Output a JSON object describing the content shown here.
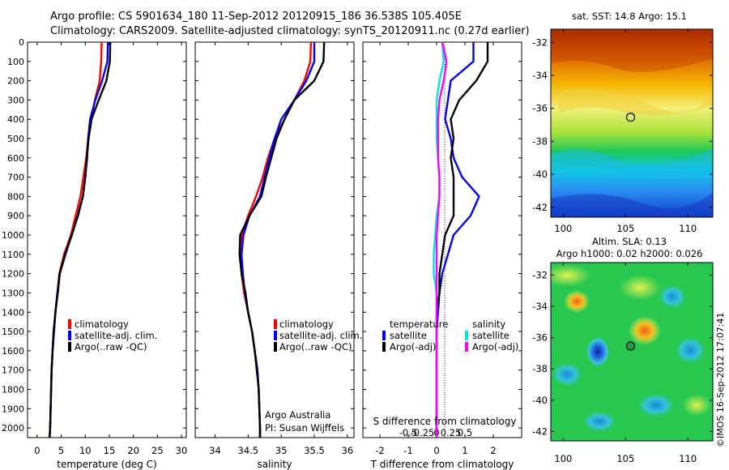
{
  "header": {
    "title_line1": "Argo profile: CS 5901634_180 11-Sep-2012 20120915_186 36.538S 105.405E",
    "title_line2": "Climatology: CARS2009. Satellite-adjusted climatology: synTS_20120911.nc (0.27d earlier)"
  },
  "colors": {
    "climatology": "#ff0000",
    "satellite": "#0000ff",
    "argo": "#000000",
    "sal_satellite": "#00e5e5",
    "sal_argo": "#ff00ff"
  },
  "panels": {
    "temperature": {
      "xlabel": "temperature (deg C)",
      "legend": [
        "climatology",
        "satellite-adj. clim.",
        "Argo(..raw -QC)"
      ]
    },
    "salinity": {
      "xlabel": "salinity",
      "legend": [
        "climatology",
        "satellite-adj. clim.",
        "Argo(..raw -QC)"
      ],
      "note_line1": "Argo Australia",
      "note_line2": "PI: Susan Wijffels"
    },
    "difference": {
      "xlabel": "T difference from climatology",
      "top_xlabel": "S difference from climatology",
      "legend_temperature_title": "temperature",
      "legend_salinity_title": "salinity",
      "legend_items": [
        "satellite",
        "Argo(-adj)",
        "satellite",
        "Argo(-adj)"
      ]
    }
  },
  "maps": {
    "sst_title": "sat. SST: 14.8 Argo: 15.1",
    "sla_title_line1": "Altim. SLA: 0.13",
    "sla_title_line2": "Argo h1000: 0.02 h2000: 0.026",
    "side_label": "©IMOS 16-Sep-2012 17:07:41",
    "yticks": [
      "-32",
      "-34",
      "-36",
      "-38",
      "-40",
      "-42"
    ],
    "xticks": [
      "100",
      "105",
      "110"
    ]
  },
  "chart_data": [
    {
      "type": "line",
      "name": "temperature profile",
      "xlabel": "temperature (deg C)",
      "ylabel": "",
      "xlim": [
        -2,
        31
      ],
      "ylim": [
        2050,
        0
      ],
      "xticks": [
        0,
        5,
        10,
        15,
        20,
        25,
        30
      ],
      "yticks": [
        0,
        100,
        200,
        300,
        400,
        500,
        600,
        700,
        800,
        900,
        1000,
        1100,
        1200,
        1300,
        1400,
        1500,
        1600,
        1700,
        1800,
        1900,
        2000
      ],
      "series": [
        {
          "name": "climatology",
          "color": "#ff0000",
          "x": [
            13.4,
            13.3,
            13.0,
            12.0,
            11.3,
            10.6,
            10.2,
            9.6,
            9.0,
            8.0,
            7.0,
            5.6,
            4.6,
            4.2,
            3.8,
            3.5,
            3.2,
            3.0,
            2.9,
            2.8,
            2.7,
            2.6
          ],
          "y": [
            0,
            100,
            200,
            300,
            400,
            500,
            600,
            700,
            800,
            900,
            1000,
            1100,
            1200,
            1300,
            1400,
            1500,
            1600,
            1700,
            1800,
            1900,
            2000,
            2050
          ]
        },
        {
          "name": "satellite-adj. clim.",
          "color": "#0000ff",
          "x": [
            14.7,
            14.6,
            13.5,
            12.1,
            11.0,
            10.6,
            10.4,
            10.0,
            9.5,
            8.5,
            7.2,
            5.9,
            4.7,
            4.2,
            3.8,
            3.5,
            3.2,
            3.0,
            2.9,
            2.8,
            2.7,
            2.6
          ],
          "y": [
            0,
            100,
            200,
            300,
            400,
            500,
            600,
            700,
            800,
            900,
            1000,
            1100,
            1200,
            1300,
            1400,
            1500,
            1600,
            1700,
            1800,
            1900,
            2000,
            2050
          ]
        },
        {
          "name": "Argo(..raw -QC)",
          "color": "#000000",
          "x": [
            15.2,
            15.1,
            14.4,
            12.8,
            11.3,
            10.7,
            10.3,
            10.0,
            9.5,
            8.4,
            7.2,
            5.8,
            4.7,
            4.3,
            3.8,
            3.4,
            3.2,
            3.0,
            2.9,
            2.8,
            2.7,
            2.6
          ],
          "y": [
            0,
            100,
            200,
            300,
            400,
            500,
            600,
            700,
            800,
            900,
            1000,
            1100,
            1200,
            1300,
            1400,
            1500,
            1600,
            1700,
            1800,
            1900,
            2000,
            2050
          ]
        }
      ]
    },
    {
      "type": "line",
      "name": "salinity profile",
      "xlabel": "salinity",
      "xlim": [
        33.7,
        36.1
      ],
      "ylim": [
        2050,
        0
      ],
      "xticks": [
        34,
        34.5,
        35,
        35.5,
        36
      ],
      "series": [
        {
          "name": "climatology",
          "color": "#ff0000",
          "x": [
            35.45,
            35.44,
            35.35,
            35.2,
            35.05,
            34.9,
            34.8,
            34.72,
            34.62,
            34.5,
            34.4,
            34.39,
            34.4,
            34.44,
            34.5,
            34.56,
            34.6,
            34.64,
            34.66,
            34.67,
            34.68,
            34.68
          ],
          "y": [
            0,
            100,
            200,
            300,
            400,
            500,
            600,
            700,
            800,
            900,
            1000,
            1100,
            1200,
            1300,
            1400,
            1500,
            1600,
            1700,
            1800,
            1900,
            2000,
            2050
          ]
        },
        {
          "name": "satellite-adj. clim.",
          "color": "#0000ff",
          "x": [
            35.5,
            35.5,
            35.38,
            35.2,
            35.0,
            34.9,
            34.82,
            34.75,
            34.68,
            34.52,
            34.43,
            34.4,
            34.42,
            34.45,
            34.5,
            34.56,
            34.6,
            34.64,
            34.66,
            34.67,
            34.68,
            34.68
          ],
          "y": [
            0,
            100,
            200,
            300,
            400,
            500,
            600,
            700,
            800,
            900,
            1000,
            1100,
            1200,
            1300,
            1400,
            1500,
            1600,
            1700,
            1800,
            1900,
            2000,
            2050
          ]
        },
        {
          "name": "Argo(..raw -QC)",
          "color": "#000000",
          "x": [
            35.65,
            35.64,
            35.5,
            35.2,
            35.05,
            34.93,
            34.85,
            34.77,
            34.7,
            34.52,
            34.38,
            34.37,
            34.4,
            34.46,
            34.5,
            34.56,
            34.6,
            34.63,
            34.66,
            34.67,
            34.68,
            34.68
          ],
          "y": [
            0,
            100,
            200,
            300,
            400,
            500,
            600,
            700,
            800,
            900,
            1000,
            1100,
            1200,
            1300,
            1400,
            1500,
            1600,
            1700,
            1800,
            1900,
            2000,
            2050
          ]
        }
      ]
    },
    {
      "type": "line",
      "name": "difference from climatology",
      "xlabel": "T difference from climatology",
      "top_xlabel": "S difference from climatology",
      "xlim": [
        -2.6,
        3.0
      ],
      "ylim": [
        2050,
        0
      ],
      "xticks": [
        -2,
        -1,
        0,
        1,
        2
      ],
      "top_xticks": [
        "-0.5",
        "-0.25",
        "0",
        "0.25",
        "0.5"
      ],
      "series": [
        {
          "name": "satellite",
          "group": "temperature",
          "color": "#0000ff",
          "x": [
            1.3,
            1.3,
            0.5,
            0.4,
            0.3,
            0.5,
            0.6,
            0.9,
            1.5,
            1.2,
            0.6,
            0.4,
            0.2,
            0.1,
            0.05,
            0.0,
            0.0,
            0.0,
            0.0,
            0.0,
            0.0,
            0.0
          ],
          "y": [
            0,
            100,
            200,
            300,
            400,
            500,
            600,
            700,
            800,
            900,
            1000,
            1100,
            1200,
            1300,
            1400,
            1500,
            1600,
            1700,
            1800,
            1900,
            2000,
            2050
          ]
        },
        {
          "name": "Argo(-adj)",
          "group": "temperature",
          "color": "#000000",
          "x": [
            1.8,
            1.8,
            1.4,
            0.8,
            0.5,
            0.6,
            0.5,
            0.6,
            0.6,
            0.6,
            0.3,
            0.2,
            0.1,
            0.1,
            0.0,
            0.0,
            0.0,
            0.0,
            0.0,
            0.0,
            0.0,
            0.0
          ],
          "y": [
            0,
            100,
            200,
            300,
            400,
            500,
            600,
            700,
            800,
            900,
            1000,
            1100,
            1200,
            1300,
            1400,
            1500,
            1600,
            1700,
            1800,
            1900,
            2000,
            2050
          ]
        },
        {
          "name": "satellite",
          "group": "salinity",
          "color": "#00e5e5",
          "x": [
            0.2,
            0.25,
            0.1,
            0.0,
            0.0,
            0.0,
            0.05,
            0.1,
            0.1,
            0.0,
            -0.05,
            -0.1,
            -0.1,
            0.0,
            0.0,
            0.0,
            0.0,
            0.0,
            0.0,
            0.0,
            0.0,
            0.0
          ],
          "y": [
            0,
            100,
            200,
            300,
            400,
            500,
            600,
            700,
            800,
            900,
            1000,
            1100,
            1200,
            1300,
            1400,
            1500,
            1600,
            1700,
            1800,
            1900,
            2000,
            2050
          ]
        },
        {
          "name": "Argo(-adj)",
          "group": "salinity",
          "color": "#ff00ff",
          "x": [
            0.2,
            0.35,
            0.25,
            0.1,
            0.05,
            0.05,
            0.05,
            0.1,
            0.1,
            0.05,
            0.0,
            0.0,
            0.0,
            0.0,
            0.0,
            0.0,
            0.0,
            0.0,
            0.0,
            0.0,
            0.0,
            0.0
          ],
          "y": [
            0,
            100,
            200,
            300,
            400,
            500,
            600,
            700,
            800,
            900,
            1000,
            1100,
            1200,
            1300,
            1400,
            1500,
            1600,
            1700,
            1800,
            1900,
            2000,
            2050
          ]
        }
      ]
    },
    {
      "type": "heatmap",
      "name": "sat. SST map",
      "title": "sat. SST: 14.8 Argo: 15.1",
      "xlim": [
        99,
        112
      ],
      "ylim": [
        -42.6,
        -31.2
      ],
      "marker": {
        "lon": 105.405,
        "lat": -36.538
      },
      "pattern": "warm north (orange-red) grading to cool south (blue)"
    },
    {
      "type": "heatmap",
      "name": "Altim. SLA map",
      "title": "Altim. SLA: 0.13",
      "xlim": [
        99,
        112
      ],
      "ylim": [
        -42.6,
        -31.2
      ],
      "marker": {
        "lon": 105.405,
        "lat": -36.538
      },
      "pattern": "green field with scattered blue and orange eddies"
    }
  ]
}
